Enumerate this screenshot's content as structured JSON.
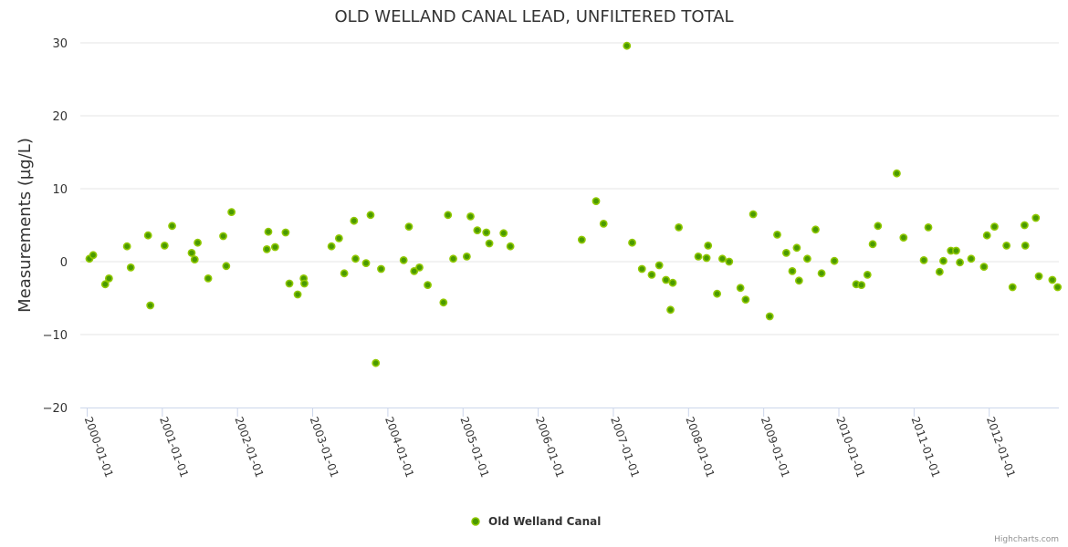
{
  "chart_data": {
    "type": "scatter",
    "title": "OLD WELLAND CANAL LEAD, UNFILTERED TOTAL",
    "xlabel": "",
    "ylabel": "Measurements (µg/L)",
    "ylim": [
      -20,
      30
    ],
    "yticks": [
      -20,
      -10,
      0,
      10,
      20,
      30
    ],
    "ytick_labels": [
      "−20",
      "−10",
      "0",
      "10",
      "20",
      "30"
    ],
    "xlim": [
      2000.0,
      2012.95
    ],
    "xticks": [
      2000,
      2001,
      2002,
      2003,
      2004,
      2005,
      2006,
      2007,
      2008,
      2009,
      2010,
      2011,
      2012
    ],
    "xtick_labels": [
      "2000-01-01",
      "2001-01-01",
      "2002-01-01",
      "2003-01-01",
      "2004-01-01",
      "2005-01-01",
      "2006-01-01",
      "2007-01-01",
      "2008-01-01",
      "2009-01-01",
      "2010-01-01",
      "2011-01-01",
      "2012-01-01"
    ],
    "grid": true,
    "legend_position": "bottom-center",
    "series": [
      {
        "name": "Old Welland Canal",
        "color": "#7cb5ec",
        "marker_fill": "#4a9a00",
        "marker_stroke": "#90c800",
        "points": [
          [
            2000.03,
            0.4
          ],
          [
            2000.08,
            0.9
          ],
          [
            2000.24,
            -3.1
          ],
          [
            2000.29,
            -2.3
          ],
          [
            2000.53,
            2.1
          ],
          [
            2000.58,
            -0.8
          ],
          [
            2000.81,
            3.6
          ],
          [
            2000.84,
            -6.0
          ],
          [
            2001.03,
            2.2
          ],
          [
            2001.13,
            4.9
          ],
          [
            2001.39,
            1.2
          ],
          [
            2001.43,
            0.3
          ],
          [
            2001.47,
            2.6
          ],
          [
            2001.61,
            -2.3
          ],
          [
            2001.81,
            3.5
          ],
          [
            2001.85,
            -0.6
          ],
          [
            2001.92,
            6.8
          ],
          [
            2002.41,
            4.1
          ],
          [
            2002.39,
            1.7
          ],
          [
            2002.5,
            2.0
          ],
          [
            2002.64,
            4.0
          ],
          [
            2002.69,
            -3.0
          ],
          [
            2002.8,
            -4.5
          ],
          [
            2002.88,
            -2.3
          ],
          [
            2002.89,
            -3.0
          ],
          [
            2003.25,
            2.1
          ],
          [
            2003.35,
            3.2
          ],
          [
            2003.42,
            -1.6
          ],
          [
            2003.55,
            5.6
          ],
          [
            2003.57,
            0.4
          ],
          [
            2003.71,
            -0.2
          ],
          [
            2003.77,
            6.4
          ],
          [
            2003.84,
            -13.9
          ],
          [
            2003.91,
            -1.0
          ],
          [
            2004.21,
            0.2
          ],
          [
            2004.28,
            4.8
          ],
          [
            2004.35,
            -1.3
          ],
          [
            2004.42,
            -0.8
          ],
          [
            2004.53,
            -3.2
          ],
          [
            2004.74,
            -5.6
          ],
          [
            2004.8,
            6.4
          ],
          [
            2004.87,
            0.4
          ],
          [
            2005.05,
            0.7
          ],
          [
            2005.1,
            6.2
          ],
          [
            2005.19,
            4.3
          ],
          [
            2005.31,
            4.0
          ],
          [
            2005.35,
            2.5
          ],
          [
            2005.54,
            3.9
          ],
          [
            2005.63,
            2.1
          ],
          [
            2006.58,
            3.0
          ],
          [
            2006.77,
            8.3
          ],
          [
            2006.87,
            5.2
          ],
          [
            2007.18,
            29.6
          ],
          [
            2007.25,
            2.6
          ],
          [
            2007.38,
            -1.0
          ],
          [
            2007.51,
            -1.8
          ],
          [
            2007.61,
            -0.5
          ],
          [
            2007.7,
            -2.5
          ],
          [
            2007.76,
            -6.6
          ],
          [
            2007.79,
            -2.9
          ],
          [
            2007.87,
            4.7
          ],
          [
            2008.13,
            0.7
          ],
          [
            2008.24,
            0.5
          ],
          [
            2008.26,
            2.2
          ],
          [
            2008.38,
            -4.4
          ],
          [
            2008.45,
            0.4
          ],
          [
            2008.54,
            0.0
          ],
          [
            2008.69,
            -3.6
          ],
          [
            2008.76,
            -5.2
          ],
          [
            2008.86,
            6.5
          ],
          [
            2009.08,
            -7.5
          ],
          [
            2009.18,
            3.7
          ],
          [
            2009.3,
            1.2
          ],
          [
            2009.38,
            -1.3
          ],
          [
            2009.44,
            1.9
          ],
          [
            2009.47,
            -2.6
          ],
          [
            2009.58,
            0.4
          ],
          [
            2009.69,
            4.4
          ],
          [
            2009.77,
            -1.6
          ],
          [
            2009.94,
            0.1
          ],
          [
            2010.23,
            -3.1
          ],
          [
            2010.3,
            -3.2
          ],
          [
            2010.38,
            -1.8
          ],
          [
            2010.45,
            2.4
          ],
          [
            2010.52,
            4.9
          ],
          [
            2010.77,
            12.1
          ],
          [
            2010.86,
            3.3
          ],
          [
            2011.13,
            0.2
          ],
          [
            2011.19,
            4.7
          ],
          [
            2011.34,
            -1.4
          ],
          [
            2011.39,
            0.1
          ],
          [
            2011.49,
            1.5
          ],
          [
            2011.56,
            1.5
          ],
          [
            2011.61,
            -0.1
          ],
          [
            2011.76,
            0.4
          ],
          [
            2011.93,
            -0.7
          ],
          [
            2011.97,
            3.6
          ],
          [
            2012.07,
            4.8
          ],
          [
            2012.23,
            2.2
          ],
          [
            2012.31,
            -3.5
          ],
          [
            2012.47,
            5.0
          ],
          [
            2012.48,
            2.2
          ],
          [
            2012.62,
            6.0
          ],
          [
            2012.66,
            -2.0
          ],
          [
            2012.84,
            -2.5
          ],
          [
            2012.91,
            -3.5
          ]
        ]
      }
    ],
    "credit": "Highcharts.com"
  }
}
